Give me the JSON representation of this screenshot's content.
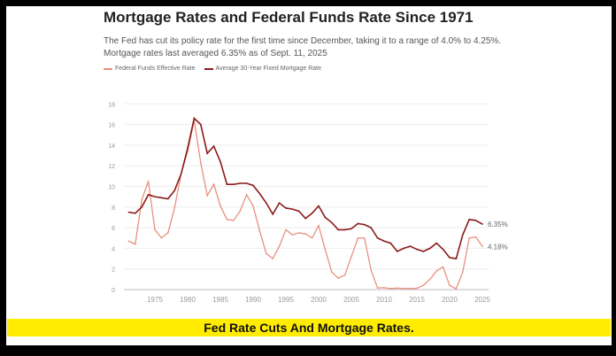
{
  "chart_data": {
    "type": "line",
    "title": "Mortgage Rates and Federal Funds Rate Since 1971",
    "subtitle": "The Fed has cut its policy rate for the first time since December, taking it to a range of 4.0% to 4.25%. Mortgage rates last averaged 6.35% as of Sept. 11, 2025",
    "xlabel": "",
    "ylabel": "",
    "ylim": [
      0,
      18
    ],
    "xlim": [
      1971,
      2025.7
    ],
    "y_ticks": [
      "0",
      "2",
      "4",
      "6",
      "8",
      "10",
      "12",
      "14",
      "16",
      "18"
    ],
    "x_ticks": [
      "1975",
      "1980",
      "1985",
      "1990",
      "1995",
      "2000",
      "2005",
      "2010",
      "2015",
      "2020",
      "2025"
    ],
    "grid": true,
    "legend": "top-left",
    "x": [
      1971,
      1972,
      1973,
      1974,
      1975,
      1976,
      1977,
      1978,
      1979,
      1980,
      1981,
      1982,
      1983,
      1984,
      1985,
      1986,
      1987,
      1988,
      1989,
      1990,
      1991,
      1992,
      1993,
      1994,
      1995,
      1996,
      1997,
      1998,
      1999,
      2000,
      2001,
      2002,
      2003,
      2004,
      2005,
      2006,
      2007,
      2008,
      2009,
      2010,
      2011,
      2012,
      2013,
      2014,
      2015,
      2016,
      2017,
      2018,
      2019,
      2020,
      2021,
      2022,
      2023,
      2024,
      2025
    ],
    "series": [
      {
        "name": "Federal Funds Effective Rate",
        "color": "#e8907f",
        "values": [
          4.7,
          4.4,
          8.7,
          10.5,
          5.8,
          5.0,
          5.5,
          7.9,
          11.2,
          13.4,
          16.4,
          12.3,
          9.1,
          10.2,
          8.1,
          6.8,
          6.7,
          7.6,
          9.2,
          8.1,
          5.7,
          3.5,
          3.0,
          4.2,
          5.8,
          5.3,
          5.5,
          5.4,
          5.0,
          6.2,
          3.9,
          1.7,
          1.1,
          1.4,
          3.2,
          5.0,
          5.0,
          1.9,
          0.16,
          0.18,
          0.1,
          0.14,
          0.11,
          0.09,
          0.13,
          0.4,
          1.0,
          1.8,
          2.2,
          0.4,
          0.08,
          1.7,
          5.0,
          5.1,
          4.18
        ],
        "end_label": "4.18%"
      },
      {
        "name": "Average 30-Year Fixed Mortgage Rate",
        "color": "#8b1a1a",
        "values": [
          7.5,
          7.4,
          8.0,
          9.2,
          9.0,
          8.9,
          8.8,
          9.6,
          11.2,
          13.7,
          16.6,
          16.0,
          13.2,
          13.9,
          12.4,
          10.2,
          10.2,
          10.3,
          10.3,
          10.1,
          9.3,
          8.4,
          7.3,
          8.4,
          7.9,
          7.8,
          7.6,
          6.9,
          7.4,
          8.1,
          7.0,
          6.5,
          5.8,
          5.8,
          5.9,
          6.4,
          6.3,
          6.0,
          5.0,
          4.7,
          4.5,
          3.7,
          4.0,
          4.2,
          3.9,
          3.7,
          4.0,
          4.5,
          3.9,
          3.1,
          3.0,
          5.3,
          6.8,
          6.7,
          6.35
        ],
        "end_label": "6.35%"
      }
    ]
  },
  "banner": "Fed Rate Cuts And Mortgage Rates."
}
